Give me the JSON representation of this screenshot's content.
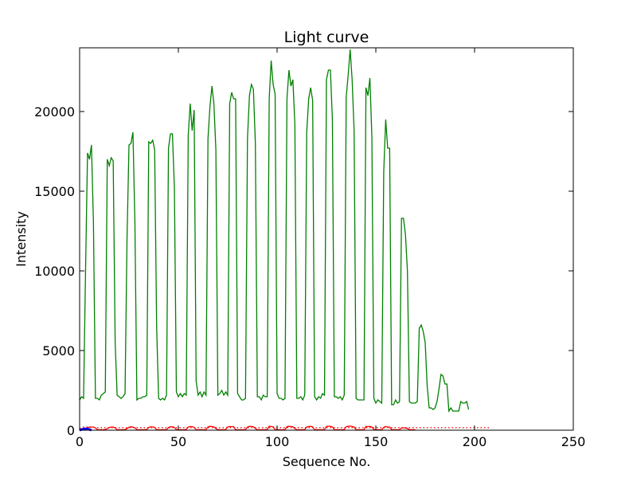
{
  "chart_data": {
    "type": "line",
    "title": "Light curve",
    "xlabel": "Sequence No.",
    "ylabel": "Intensity",
    "xlim": [
      0,
      250
    ],
    "ylim": [
      0,
      24000
    ],
    "x_ticks": [
      0,
      50,
      100,
      150,
      200,
      250
    ],
    "y_ticks": [
      0,
      5000,
      10000,
      15000,
      20000
    ],
    "grid": false,
    "series": [
      {
        "name": "green",
        "color": "#008000",
        "style": "solid",
        "x_start": 0,
        "values": [
          1900,
          2100,
          2000,
          10000,
          17400,
          17000,
          17900,
          13000,
          2000,
          2000,
          1900,
          2200,
          2300,
          2400,
          17000,
          16600,
          17100,
          16900,
          5500,
          2200,
          2100,
          2000,
          2100,
          2300,
          12000,
          17900,
          18000,
          18700,
          13000,
          1900,
          2000,
          2000,
          2100,
          2100,
          2200,
          18100,
          18000,
          18200,
          17600,
          6500,
          2000,
          1900,
          2000,
          1900,
          2200,
          17700,
          18600,
          18600,
          15200,
          2400,
          2100,
          2300,
          2100,
          2300,
          2200,
          18500,
          20500,
          18800,
          20100,
          3100,
          2200,
          2400,
          2100,
          2400,
          2200,
          18300,
          20300,
          21600,
          20500,
          17600,
          2200,
          2300,
          2500,
          2200,
          2400,
          2200,
          20500,
          21200,
          20800,
          20800,
          2300,
          2100,
          1900,
          1900,
          2000,
          18300,
          21000,
          21700,
          21400,
          18000,
          2100,
          2100,
          1900,
          2200,
          2100,
          2100,
          20800,
          23200,
          21700,
          21100,
          2300,
          2000,
          2000,
          1900,
          2000,
          20800,
          22600,
          21600,
          22000,
          19200,
          2000,
          2000,
          2100,
          1900,
          2200,
          18700,
          20800,
          21500,
          20700,
          2100,
          1900,
          2100,
          2000,
          2300,
          2200,
          22000,
          22600,
          22600,
          19500,
          2100,
          2100,
          2000,
          2100,
          1900,
          2200,
          20900,
          22300,
          23900,
          22000,
          18800,
          2000,
          1900,
          1900,
          1900,
          1900,
          21500,
          21000,
          22100,
          18400,
          2000,
          1700,
          1900,
          1800,
          1700,
          16200,
          19500,
          17700,
          17700,
          1600,
          1600,
          1900,
          1700,
          1800,
          13300,
          13300,
          12300,
          10000,
          1800,
          1700,
          1700,
          1700,
          1800,
          6400,
          6600,
          6200,
          5500,
          2800,
          1400,
          1400,
          1300,
          1400,
          1800,
          2600,
          3500,
          3400,
          2900,
          2900,
          1200,
          1400,
          1200,
          1200,
          1200,
          1200,
          1800,
          1700,
          1700,
          1800,
          1300
        ]
      },
      {
        "name": "red",
        "color": "#ff0000",
        "style": "solid",
        "x_start": 0,
        "values": [
          30,
          40,
          60,
          100,
          150,
          200,
          200,
          200,
          150,
          30,
          30,
          30,
          30,
          40,
          90,
          170,
          200,
          200,
          150,
          30,
          30,
          30,
          30,
          40,
          100,
          190,
          210,
          200,
          150,
          30,
          30,
          30,
          30,
          30,
          40,
          180,
          210,
          200,
          180,
          30,
          30,
          30,
          30,
          30,
          40,
          170,
          220,
          210,
          180,
          30,
          30,
          30,
          30,
          30,
          40,
          200,
          230,
          220,
          180,
          30,
          30,
          30,
          30,
          30,
          40,
          210,
          240,
          230,
          210,
          100,
          30,
          30,
          30,
          30,
          40,
          210,
          230,
          220,
          220,
          30,
          30,
          30,
          30,
          30,
          40,
          200,
          240,
          230,
          220,
          100,
          30,
          30,
          30,
          30,
          30,
          40,
          250,
          230,
          220,
          30,
          30,
          30,
          30,
          30,
          40,
          220,
          240,
          230,
          220,
          100,
          30,
          30,
          30,
          30,
          40,
          200,
          230,
          240,
          210,
          30,
          30,
          30,
          30,
          30,
          40,
          240,
          250,
          240,
          210,
          30,
          30,
          30,
          30,
          30,
          40,
          220,
          240,
          260,
          230,
          200,
          30,
          30,
          30,
          30,
          30,
          240,
          220,
          240,
          200,
          30,
          30,
          30,
          30,
          30,
          180,
          230,
          200,
          200,
          30,
          30,
          30,
          30,
          30,
          140,
          150,
          130,
          110,
          30,
          30,
          30,
          30
        ]
      },
      {
        "name": "red-dotted",
        "color": "#ff0000",
        "style": "dotted",
        "x_start": 0,
        "values": [
          100,
          160,
          200,
          210,
          200,
          190,
          180,
          170,
          160,
          160,
          160,
          160,
          160,
          160,
          160,
          160,
          160,
          160,
          160,
          160,
          160,
          160,
          160,
          160,
          160,
          160,
          160,
          160,
          160,
          160,
          160,
          160,
          160,
          160,
          160,
          160,
          160,
          160,
          160,
          160,
          160,
          160,
          160,
          160,
          160,
          160,
          160,
          160,
          160,
          160,
          160,
          160,
          160,
          160,
          160,
          160,
          160,
          160,
          160,
          160,
          160,
          160,
          160,
          160,
          160,
          160,
          160,
          160,
          160,
          160,
          160,
          160,
          160,
          160,
          160,
          160,
          160,
          160,
          160,
          160,
          160,
          160,
          160,
          160,
          160,
          160,
          160,
          160,
          160,
          160,
          160,
          160,
          160,
          160,
          160,
          160,
          160,
          160,
          160,
          160,
          160,
          160,
          160,
          160,
          160,
          160,
          160,
          160,
          160,
          160,
          160,
          160,
          160,
          160,
          160,
          160,
          160,
          160,
          160,
          160,
          160,
          160,
          160,
          160,
          160,
          160,
          160,
          160,
          160,
          160,
          160,
          160,
          160,
          160,
          160,
          160,
          160,
          160,
          160,
          160,
          160,
          160,
          160,
          160,
          160,
          160,
          160,
          160,
          160,
          160,
          160,
          160,
          160,
          160,
          160,
          160,
          160,
          160,
          160,
          160,
          160,
          160,
          160,
          160,
          160,
          160,
          160,
          160,
          160,
          160,
          160,
          160,
          160,
          160,
          160,
          160,
          160,
          160,
          160,
          160,
          160,
          160,
          160,
          160,
          160,
          160,
          160,
          160,
          160,
          160,
          160,
          160,
          160,
          160,
          160,
          160,
          160,
          160,
          160,
          160,
          160,
          160,
          160,
          160,
          160,
          160,
          160,
          160,
          160
        ]
      },
      {
        "name": "blue",
        "color": "#0000ff",
        "style": "solid",
        "x_start": 0,
        "values": [
          0,
          40,
          80,
          90,
          80,
          40,
          0
        ]
      }
    ]
  }
}
